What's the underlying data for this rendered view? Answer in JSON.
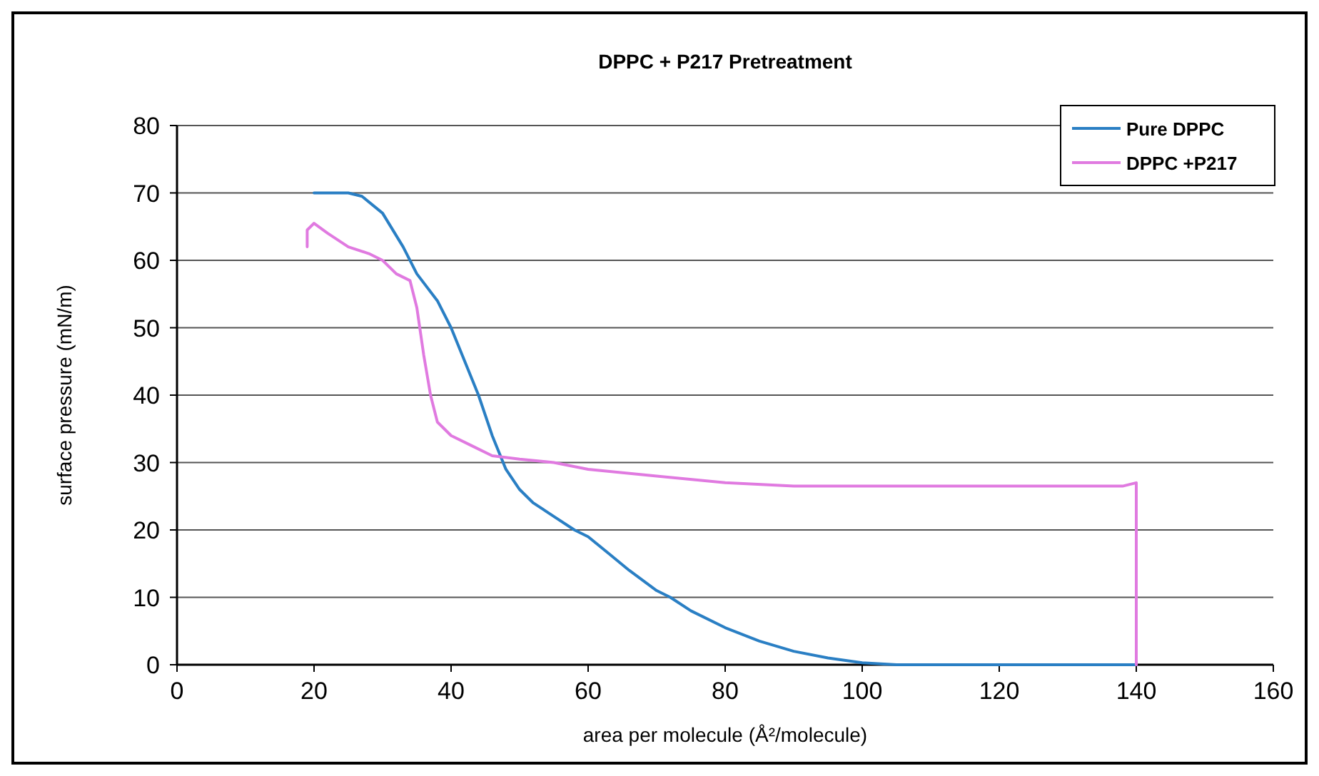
{
  "chart_data": {
    "type": "line",
    "title": "DPPC + P217 Pretreatment",
    "xlabel": "area per molecule (Å²/molecule)",
    "ylabel": "surface pressure (mN/m)",
    "xlim": [
      0,
      160
    ],
    "ylim": [
      0,
      80
    ],
    "xticks": [
      0,
      20,
      40,
      60,
      80,
      100,
      120,
      140,
      160
    ],
    "yticks": [
      0,
      10,
      20,
      30,
      40,
      50,
      60,
      70,
      80
    ],
    "grid": "y",
    "legend": "top right",
    "series": [
      {
        "name": "Pure DPPC",
        "color": "#2a7fc4",
        "x": [
          20,
          25,
          27,
          30,
          33,
          35,
          38,
          40,
          42,
          44,
          46,
          48,
          50,
          52,
          55,
          58,
          60,
          63,
          66,
          70,
          72,
          75,
          80,
          85,
          90,
          95,
          100,
          105,
          120,
          140
        ],
        "values": [
          70,
          70,
          69.5,
          67,
          62,
          58,
          54,
          50,
          45,
          40,
          34,
          29,
          26,
          24,
          22,
          20,
          19,
          16.5,
          14,
          11,
          10,
          8,
          5.5,
          3.5,
          2,
          1,
          0.3,
          0,
          0,
          0
        ]
      },
      {
        "name": "DPPC +P217",
        "color": "#e07ae0",
        "x": [
          19,
          19,
          20,
          22,
          25,
          28,
          30,
          32,
          34,
          35,
          36,
          37,
          38,
          40,
          43,
          46,
          50,
          55,
          60,
          70,
          80,
          90,
          100,
          120,
          138,
          140,
          140
        ],
        "values": [
          62,
          64.5,
          65.5,
          64,
          62,
          61,
          60,
          58,
          57,
          53,
          46,
          40,
          36,
          34,
          32.5,
          31,
          30.5,
          30,
          29,
          28,
          27,
          26.5,
          26.5,
          26.5,
          26.5,
          27,
          0
        ]
      }
    ]
  }
}
